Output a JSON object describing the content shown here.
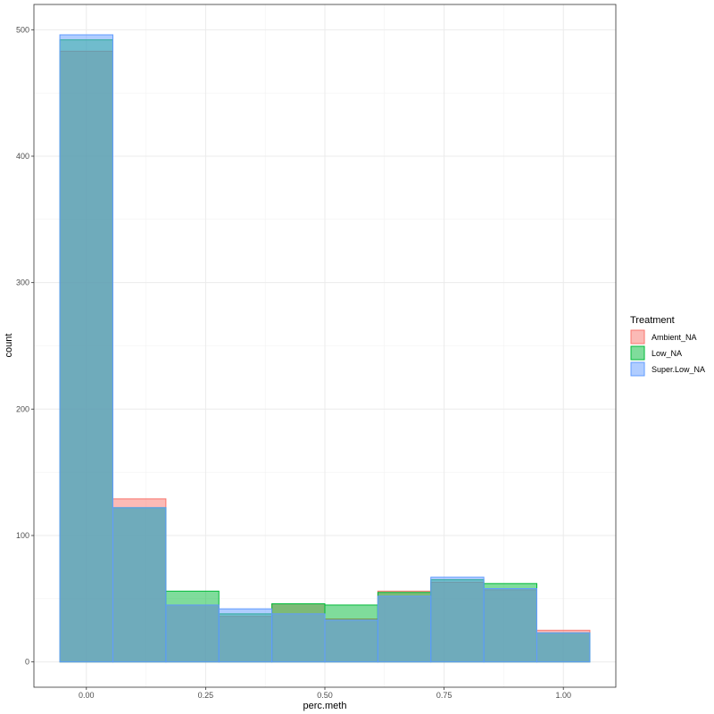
{
  "chart_data": {
    "type": "bar",
    "xlabel": "perc.meth",
    "ylabel": "count",
    "xlim": [
      -0.11,
      1.11
    ],
    "ylim": [
      -20,
      520
    ],
    "x_ticks": [
      0.0,
      0.25,
      0.5,
      0.75,
      1.0
    ],
    "x_tick_labels": [
      "0.00",
      "0.25",
      "0.50",
      "0.75",
      "1.00"
    ],
    "y_ticks": [
      0,
      100,
      200,
      300,
      400,
      500
    ],
    "y_tick_labels": [
      "0",
      "100",
      "200",
      "300",
      "400",
      "500"
    ],
    "bin_edges": [
      -0.0556,
      0.0556,
      0.1667,
      0.2778,
      0.3889,
      0.5,
      0.6111,
      0.7222,
      0.8333,
      0.9444,
      1.0556
    ],
    "grid": true,
    "legend": {
      "title": "Treatment",
      "placement": "right"
    },
    "series": [
      {
        "name": "Ambient_NA",
        "color": "#F8766D",
        "values": [
          483,
          129,
          45,
          36,
          46,
          34,
          56,
          63,
          57,
          25
        ]
      },
      {
        "name": "Low_NA",
        "color": "#00BA38",
        "values": [
          492,
          122,
          56,
          38,
          46,
          45,
          55,
          65,
          62,
          23
        ]
      },
      {
        "name": "Super.Low_NA",
        "color": "#619CFF",
        "values": [
          496,
          122,
          45,
          42,
          38,
          33,
          52,
          67,
          58,
          23
        ]
      }
    ]
  }
}
